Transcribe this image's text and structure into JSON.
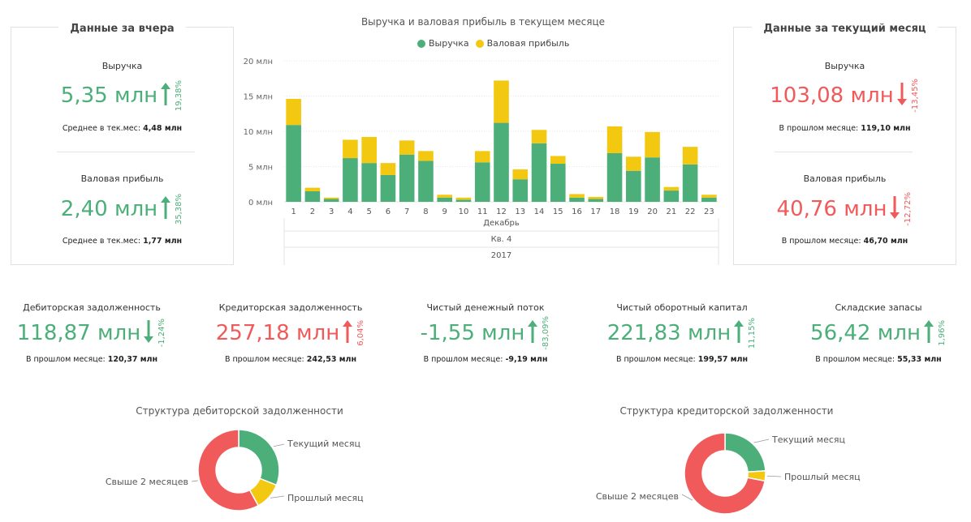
{
  "colors": {
    "green": "#4caf7a",
    "red": "#f05a5a",
    "yellow": "#f2c811",
    "gray": "#999999"
  },
  "yesterday": {
    "title": "Данные за вчера",
    "revenue": {
      "label": "Выручка",
      "value": "5,35 млн",
      "pct": "19,38%",
      "direction": "up",
      "sub_label": "Среднее в тек.мес:",
      "sub_value": "4,48 млн"
    },
    "gross": {
      "label": "Валовая прибыль",
      "value": "2,40 млн",
      "pct": "35,38%",
      "direction": "up",
      "sub_label": "Среднее в тек.мес:",
      "sub_value": "1,77 млн"
    }
  },
  "current_month": {
    "title": "Данные за текущий месяц",
    "revenue": {
      "label": "Выручка",
      "value": "103,08 млн",
      "pct": "-13,45%",
      "direction": "down",
      "sub_label": "В прошлом месяце:",
      "sub_value": "119,10 млн"
    },
    "gross": {
      "label": "Валовая прибыль",
      "value": "40,76 млн",
      "pct": "-12,72%",
      "direction": "down",
      "sub_label": "В прошлом месяце:",
      "sub_value": "46,70 млн"
    }
  },
  "kpis": [
    {
      "name": "Дебиторская задолженность",
      "value": "118,87 млн",
      "pct": "-1,24%",
      "direction": "down",
      "tone": "green",
      "sub_label": "В прошлом месяце:",
      "sub_value": "120,37 млн"
    },
    {
      "name": "Кредиторская задолженность",
      "value": "257,18 млн",
      "pct": "6,04%",
      "direction": "up",
      "tone": "red",
      "sub_label": "В прошлом месяце:",
      "sub_value": "242,53 млн"
    },
    {
      "name": "Чистый денежный поток",
      "value": "-1,55 млн",
      "pct": "-83,09%",
      "direction": "up",
      "tone": "green",
      "sub_label": "В прошлом месяце:",
      "sub_value": "-9,19 млн"
    },
    {
      "name": "Чистый оборотный капитал",
      "value": "221,83 млн",
      "pct": "11,15%",
      "direction": "up",
      "tone": "green",
      "sub_label": "В прошлом месяце:",
      "sub_value": "199,57 млн"
    },
    {
      "name": "Складские запасы",
      "value": "56,42 млн",
      "pct": "1,96%",
      "direction": "up",
      "tone": "green",
      "sub_label": "В прошлом месяце:",
      "sub_value": "55,33 млн"
    }
  ],
  "chart_data": [
    {
      "type": "bar",
      "stacked": true,
      "title": "Выручка и валовая прибыль в текущем месяце",
      "legend_position": "top-center",
      "categories": [
        "1",
        "2",
        "3",
        "4",
        "5",
        "6",
        "7",
        "8",
        "9",
        "10",
        "11",
        "12",
        "13",
        "14",
        "15",
        "16",
        "17",
        "18",
        "19",
        "20",
        "21",
        "22",
        "23"
      ],
      "x_hierarchy": [
        "Декабрь",
        "Кв. 4",
        "2017"
      ],
      "ylim": [
        0,
        20
      ],
      "yticks": [
        "0 млн",
        "5 млн",
        "10 млн",
        "15 млн",
        "20 млн"
      ],
      "series": [
        {
          "name": "Выручка",
          "values": [
            10.9,
            1.5,
            0.4,
            6.2,
            5.5,
            3.8,
            6.7,
            5.8,
            0.6,
            0.3,
            5.6,
            11.2,
            3.2,
            8.3,
            5.4,
            0.6,
            0.4,
            6.9,
            4.4,
            6.3,
            1.6,
            5.3,
            0.6
          ]
        },
        {
          "name": "Валовая прибыль",
          "values": [
            3.7,
            0.5,
            0.2,
            2.6,
            3.7,
            1.7,
            2.0,
            1.4,
            0.4,
            0.3,
            1.6,
            6.0,
            1.4,
            1.9,
            1.1,
            0.5,
            0.3,
            3.8,
            2.0,
            3.6,
            0.5,
            2.5,
            0.4
          ]
        }
      ],
      "grid": true
    },
    {
      "type": "pie",
      "donut": true,
      "title": "Структура дебиторской задолженности",
      "categories": [
        "Текущий месяц",
        "Прошлый месяц",
        "Свыше 2 месяцев"
      ],
      "values": [
        31,
        11,
        58
      ]
    },
    {
      "type": "pie",
      "donut": true,
      "title": "Структура кредиторской задолженности",
      "categories": [
        "Текущий месяц",
        "Прошлый месяц",
        "Свыше 2 месяцев"
      ],
      "values": [
        24,
        4,
        72
      ]
    }
  ]
}
